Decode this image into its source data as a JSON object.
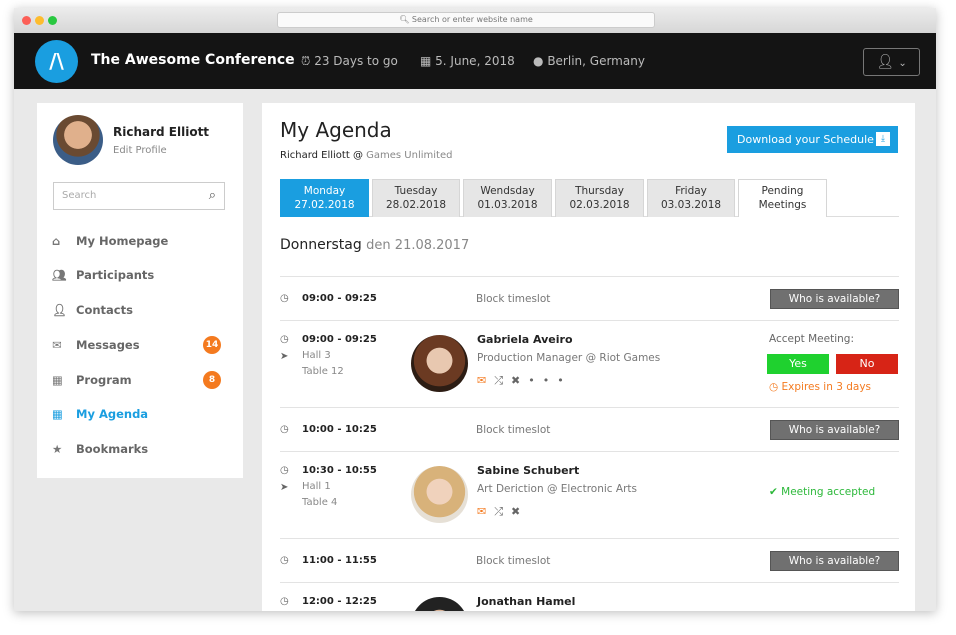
{
  "browser": {
    "url_placeholder": "Search or enter website name"
  },
  "header": {
    "logo": "/\\",
    "title": "The Awesome Conference",
    "countdown": "23 Days to go",
    "date": "5.  June, 2018",
    "location": "Berlin, Germany",
    "user_icon": "user-icon"
  },
  "sidebar": {
    "user_name": "Richard Elliott",
    "edit_profile": "Edit Profile",
    "search_placeholder": "Search",
    "items": [
      {
        "label": "My Homepage",
        "icon": "home-icon"
      },
      {
        "label": "Participants",
        "icon": "users-icon"
      },
      {
        "label": "Contacts",
        "icon": "user-icon"
      },
      {
        "label": "Messages",
        "icon": "envelope-icon",
        "badge": "14"
      },
      {
        "label": "Program",
        "icon": "calendar-icon",
        "badge": "8"
      },
      {
        "label": "My Agenda",
        "icon": "agenda-icon",
        "active": true
      },
      {
        "label": "Bookmarks",
        "icon": "star-icon"
      }
    ]
  },
  "main": {
    "title": "My Agenda",
    "user": "Richard Elliott @",
    "company": "Games Unlimited",
    "download": "Download your Schedule",
    "tabs": [
      {
        "day": "Monday",
        "date": "27.02.2018"
      },
      {
        "day": "Tuesday",
        "date": "28.02.2018"
      },
      {
        "day": "Wendsday",
        "date": "01.03.2018"
      },
      {
        "day": "Thursday",
        "date": "02.03.2018"
      },
      {
        "day": "Friday",
        "date": "03.03.2018"
      },
      {
        "day": "Pending",
        "date": "Meetings"
      }
    ],
    "day_heading": "Donnerstag",
    "day_date": "den 21.08.2017",
    "block_label": "Block timeslot",
    "who_label": "Who is available?",
    "accept_label": "Accept Meeting:",
    "yes": "Yes",
    "no": "No",
    "expires": "Expires in 3 days",
    "accepted": "Meeting accepted",
    "slots": [
      {
        "time": "09:00 - 09:25"
      },
      {
        "time": "09:00 - 09:25",
        "hall": "Hall  3",
        "table": "Table 12",
        "name": "Gabriela Aveiro",
        "role": "Production Manager @ Riot Games"
      },
      {
        "time": "10:00 - 10:25"
      },
      {
        "time": "10:30 - 10:55",
        "hall": "Hall 1",
        "table": "Table 4",
        "name": "Sabine Schubert",
        "role": "Art Deriction @ Electronic Arts"
      },
      {
        "time": "11:00 - 11:55"
      },
      {
        "time": "12:00 - 12:25",
        "name": "Jonathan Hamel"
      }
    ]
  }
}
